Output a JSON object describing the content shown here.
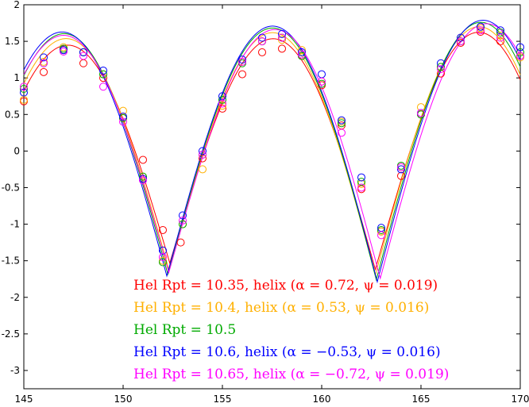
{
  "chart_data": {
    "type": "line",
    "title": "",
    "xlabel": "",
    "ylabel": "",
    "xlim": [
      145,
      170
    ],
    "ylim": [
      -3.25,
      2
    ],
    "grid": false,
    "legend_placement": "bottom-right",
    "xticks": [
      "145",
      "150",
      "155",
      "160",
      "165",
      "170"
    ],
    "yticks": [
      "-3",
      "-2.5",
      "-2",
      "-1.5",
      "-1",
      "-0.5",
      "0",
      "0.5",
      "1",
      "1.5",
      "2"
    ],
    "xtick_values": [
      145,
      150,
      155,
      160,
      165,
      170
    ],
    "ytick_values": [
      -3,
      -2.5,
      -2,
      -1.5,
      -1,
      -0.5,
      0,
      0.5,
      1,
      1.5,
      2
    ],
    "series": [
      {
        "name": "Hel Rpt = 10.35, helix (α = 0.72, ψ = 0.019)",
        "color": "#ff0000",
        "curve": {
          "amp": 1.26,
          "ampTrend": 0.0074,
          "x0": 152.35,
          "period": 10.35
        },
        "points": [
          [
            145,
            0.68
          ],
          [
            146,
            1.08
          ],
          [
            147,
            1.38
          ],
          [
            148,
            1.2
          ],
          [
            149,
            1.0
          ],
          [
            150,
            0.45
          ],
          [
            151,
            -0.12
          ],
          [
            152,
            -1.08
          ],
          [
            152.9,
            -1.25
          ],
          [
            154,
            -0.1
          ],
          [
            155,
            0.58
          ],
          [
            156,
            1.05
          ],
          [
            157,
            1.35
          ],
          [
            158,
            1.4
          ],
          [
            159,
            1.3
          ],
          [
            160,
            0.9
          ],
          [
            161,
            0.35
          ],
          [
            162,
            -0.52
          ],
          [
            163,
            -1.1
          ],
          [
            164,
            -0.34
          ],
          [
            165,
            0.5
          ],
          [
            166,
            1.06
          ],
          [
            167,
            1.48
          ],
          [
            168,
            1.63
          ],
          [
            169,
            1.5
          ],
          [
            170,
            1.3
          ]
        ]
      },
      {
        "name": "Hel Rpt = 10.4, helix (α = 0.53, ψ = 0.016)",
        "color": "#ffb000",
        "curve": {
          "amp": 1.34,
          "ampTrend": 0.0068,
          "x0": 152.3,
          "period": 10.4
        },
        "points": [
          [
            145,
            0.7
          ],
          [
            146,
            1.22
          ],
          [
            147,
            1.42
          ],
          [
            148,
            1.35
          ],
          [
            149,
            1.05
          ],
          [
            150,
            0.55
          ],
          [
            151,
            -0.35
          ],
          [
            152,
            -1.5
          ],
          [
            153,
            -1.0
          ],
          [
            154,
            -0.25
          ],
          [
            155,
            0.62
          ],
          [
            156,
            1.22
          ],
          [
            157,
            1.5
          ],
          [
            158,
            1.52
          ],
          [
            159,
            1.38
          ],
          [
            160,
            0.95
          ],
          [
            161,
            0.4
          ],
          [
            162,
            -0.45
          ],
          [
            163,
            -1.1
          ],
          [
            164,
            -0.22
          ],
          [
            165,
            0.6
          ],
          [
            166,
            1.15
          ],
          [
            167,
            1.55
          ],
          [
            168,
            1.68
          ],
          [
            169,
            1.58
          ],
          [
            170,
            1.28
          ]
        ]
      },
      {
        "name": "Hel Rpt = 10.5",
        "color": "#00aa00",
        "curve": {
          "amp": 1.4,
          "ampTrend": 0.0064,
          "x0": 152.25,
          "period": 10.5
        },
        "points": [
          [
            145,
            0.85
          ],
          [
            146,
            1.2
          ],
          [
            147,
            1.4
          ],
          [
            148,
            1.35
          ],
          [
            149,
            1.05
          ],
          [
            150,
            0.45
          ],
          [
            151,
            -0.35
          ],
          [
            152,
            -1.52
          ],
          [
            153,
            -1.0
          ],
          [
            154,
            -0.05
          ],
          [
            155,
            0.7
          ],
          [
            156,
            1.2
          ],
          [
            157,
            1.5
          ],
          [
            158,
            1.55
          ],
          [
            159,
            1.3
          ],
          [
            160,
            0.92
          ],
          [
            161,
            0.38
          ],
          [
            162,
            -0.42
          ],
          [
            163,
            -1.08
          ],
          [
            164,
            -0.2
          ],
          [
            165,
            0.5
          ],
          [
            166,
            1.15
          ],
          [
            167,
            1.5
          ],
          [
            168,
            1.7
          ],
          [
            169,
            1.62
          ],
          [
            170,
            1.35
          ]
        ]
      },
      {
        "name": "Hel Rpt = 10.6, helix (α = −0.53, ψ = 0.016)",
        "color": "#0000ff",
        "curve": {
          "amp": 1.42,
          "ampTrend": 0.0066,
          "x0": 152.2,
          "period": 10.6
        },
        "points": [
          [
            145,
            0.8
          ],
          [
            146,
            1.28
          ],
          [
            147,
            1.38
          ],
          [
            148,
            1.35
          ],
          [
            149,
            1.1
          ],
          [
            150,
            0.47
          ],
          [
            151,
            -0.38
          ],
          [
            152,
            -1.36
          ],
          [
            153,
            -0.88
          ],
          [
            154,
            0.0
          ],
          [
            155,
            0.75
          ],
          [
            156,
            1.25
          ],
          [
            157,
            1.55
          ],
          [
            158,
            1.6
          ],
          [
            159,
            1.35
          ],
          [
            160,
            1.05
          ],
          [
            161,
            0.42
          ],
          [
            162,
            -0.36
          ],
          [
            163,
            -1.05
          ],
          [
            164,
            -0.25
          ],
          [
            165,
            0.52
          ],
          [
            166,
            1.2
          ],
          [
            167,
            1.55
          ],
          [
            168,
            1.7
          ],
          [
            169,
            1.65
          ],
          [
            170,
            1.42
          ]
        ]
      },
      {
        "name": "Hel Rpt = 10.65, helix (α = −0.72, ψ = 0.019)",
        "color": "#ff00ff",
        "curve": {
          "amp": 1.38,
          "ampTrend": 0.0065,
          "x0": 152.3,
          "period": 10.65
        },
        "points": [
          [
            145,
            0.88
          ],
          [
            146,
            1.2
          ],
          [
            147,
            1.36
          ],
          [
            148,
            1.3
          ],
          [
            149,
            0.88
          ],
          [
            150,
            0.4
          ],
          [
            151,
            -0.4
          ],
          [
            152,
            -1.45
          ],
          [
            153,
            -0.95
          ],
          [
            154,
            -0.05
          ],
          [
            155,
            0.65
          ],
          [
            156,
            1.22
          ],
          [
            157,
            1.5
          ],
          [
            158,
            1.55
          ],
          [
            159,
            1.32
          ],
          [
            160,
            0.95
          ],
          [
            161,
            0.25
          ],
          [
            162,
            -0.5
          ],
          [
            163,
            -1.15
          ],
          [
            164,
            -0.22
          ],
          [
            165,
            0.52
          ],
          [
            166,
            1.12
          ],
          [
            167,
            1.5
          ],
          [
            168,
            1.65
          ],
          [
            169,
            1.55
          ],
          [
            170,
            1.3
          ]
        ]
      }
    ]
  }
}
